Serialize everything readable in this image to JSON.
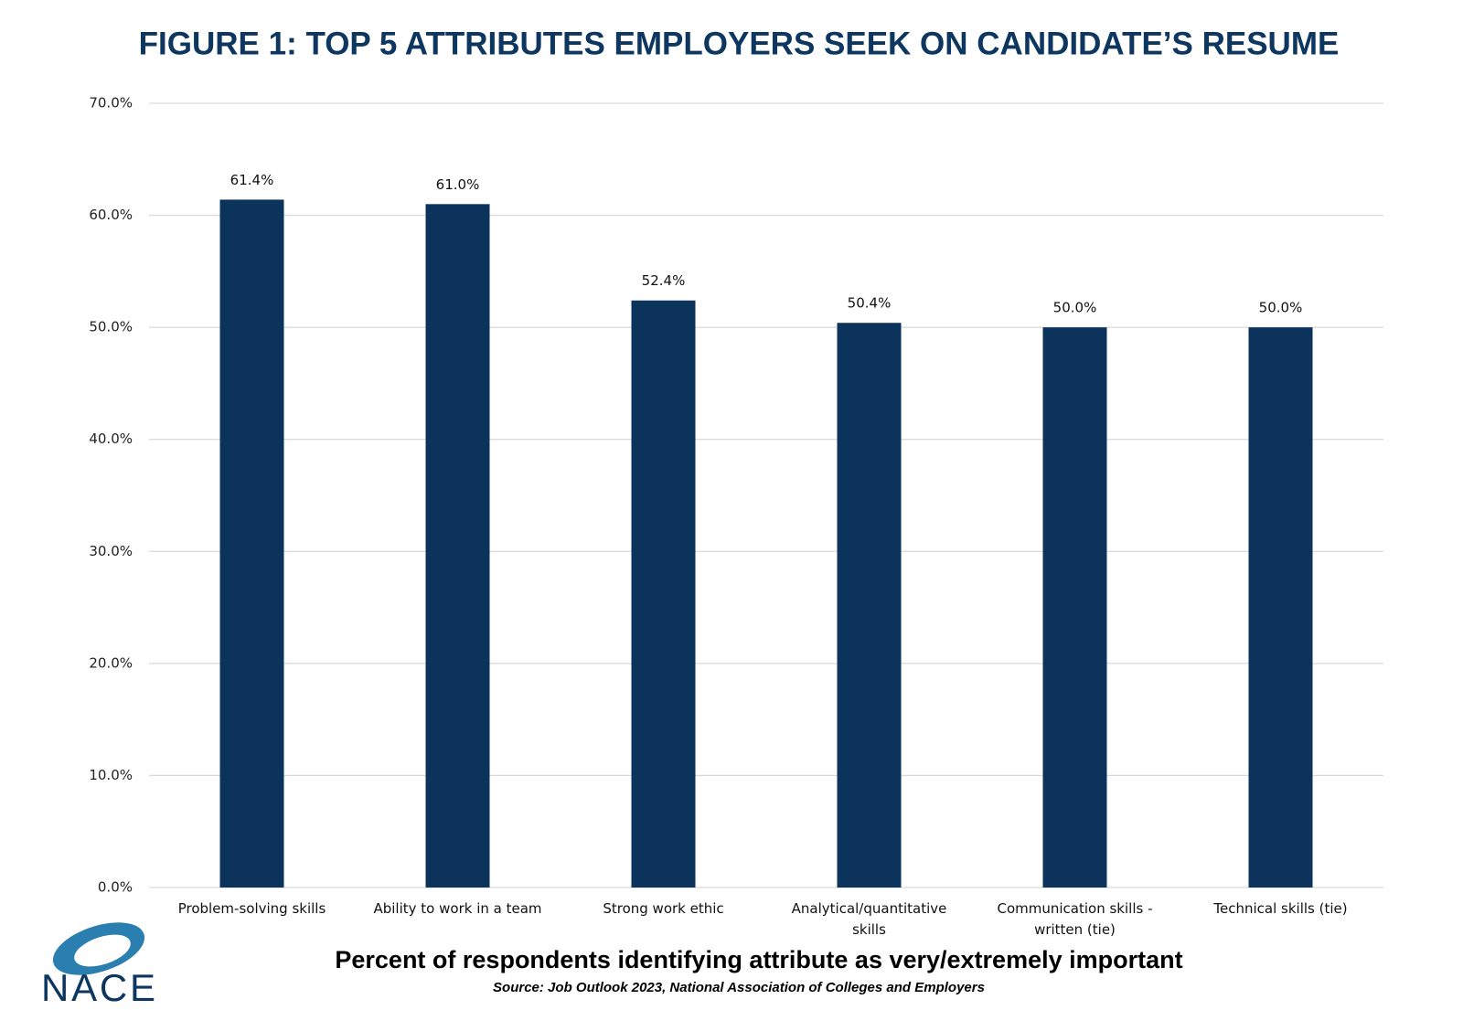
{
  "chart_data": {
    "type": "bar",
    "title": "FIGURE 1: TOP 5 ATTRIBUTES EMPLOYERS SEEK ON CANDIDATE’S RESUME",
    "categories": [
      "Problem-solving skills",
      "Ability to work in a team",
      "Strong work ethic",
      "Analytical/quantitative skills",
      "Communication skills - written (tie)",
      "Technical skills (tie)"
    ],
    "values": [
      61.4,
      61.0,
      52.4,
      50.4,
      50.0,
      50.0
    ],
    "value_labels": [
      "61.4%",
      "61.0%",
      "52.4%",
      "50.4%",
      "50.0%",
      "50.0%"
    ],
    "color": "#0b335c",
    "ylim": [
      0,
      70
    ],
    "yticks": [
      {
        "value": 0,
        "label": "0.0%"
      },
      {
        "value": 10,
        "label": "10.0%"
      },
      {
        "value": 20,
        "label": "20.0%"
      },
      {
        "value": 30,
        "label": "30.0%"
      },
      {
        "value": 40,
        "label": "40.0%"
      },
      {
        "value": 50,
        "label": "50.0%"
      },
      {
        "value": 60,
        "label": "60.0%"
      },
      {
        "value": 70,
        "label": "70.0%"
      }
    ],
    "grid": true,
    "caption": "Percent of respondents identifying attribute as very/extremely important",
    "source": "Source: Job Outlook 2023, National Association of Colleges and Employers",
    "logo": "NACE"
  }
}
